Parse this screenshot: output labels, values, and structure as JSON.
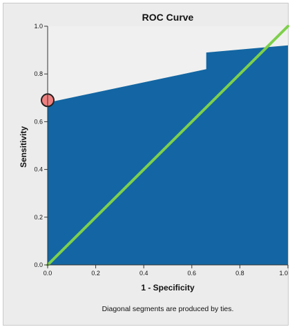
{
  "chart_data": {
    "type": "area",
    "title": "ROC Curve",
    "xlabel": "1 - Specificity",
    "ylabel": "Sensitivity",
    "xlim": [
      0.0,
      1.0
    ],
    "ylim": [
      0.0,
      1.0
    ],
    "x_ticks": [
      "0.0",
      "0.2",
      "0.4",
      "0.6",
      "0.8",
      "1.0"
    ],
    "y_ticks": [
      "0.0",
      "0.2",
      "0.4",
      "0.6",
      "0.8",
      "1.0"
    ],
    "curve": {
      "x": [
        0.0,
        0.0,
        0.66,
        0.66,
        1.0,
        1.0
      ],
      "y": [
        0.0,
        0.68,
        0.82,
        0.89,
        0.92,
        0.0
      ]
    },
    "diagonal": {
      "x": [
        0.0,
        1.0
      ],
      "y": [
        0.0,
        1.0
      ]
    },
    "highlight_point": {
      "x": 0.0,
      "y": 0.69
    },
    "footnote": "Diagonal segments are produced by ties.",
    "colors": {
      "area": "#1366a3",
      "diagonal": "#7ed04b",
      "point_fill": "#f08080",
      "point_stroke": "#222222",
      "plot_bg": "#f0f0f0",
      "frame_bg": "#ececec"
    }
  }
}
